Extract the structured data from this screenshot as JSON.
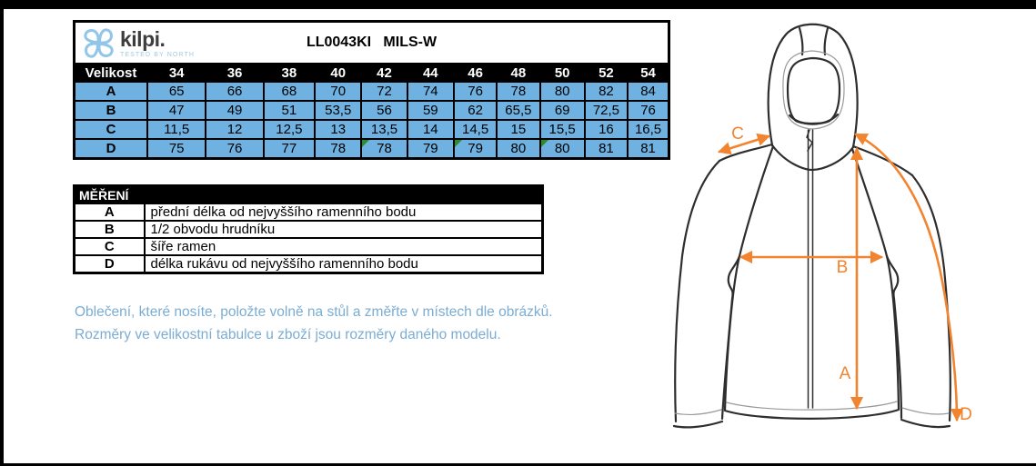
{
  "brand": {
    "name": "kilpi.",
    "slogan": "TESTED BY NORTH"
  },
  "title": "LL0043KI   MILS-W",
  "size_table": {
    "header": [
      "Velikost",
      "34",
      "36",
      "38",
      "40",
      "42",
      "44",
      "46",
      "48",
      "50",
      "52",
      "54"
    ],
    "rows": [
      {
        "label": "A",
        "values": [
          "65",
          "66",
          "68",
          "70",
          "72",
          "74",
          "76",
          "78",
          "80",
          "82",
          "84"
        ],
        "flags": []
      },
      {
        "label": "B",
        "values": [
          "47",
          "49",
          "51",
          "53,5",
          "56",
          "59",
          "62",
          "65,5",
          "69",
          "72,5",
          "76"
        ],
        "flags": []
      },
      {
        "label": "C",
        "values": [
          "11,5",
          "12",
          "12,5",
          "13",
          "13,5",
          "14",
          "14,5",
          "15",
          "15,5",
          "16",
          "16,5"
        ],
        "flags": []
      },
      {
        "label": "D",
        "values": [
          "75",
          "76",
          "77",
          "78",
          "78",
          "79",
          "79",
          "80",
          "80",
          "81",
          "81"
        ],
        "flags": [
          4,
          6,
          8
        ]
      }
    ]
  },
  "measurement_legend": {
    "header": "MĚŘENÍ",
    "rows": [
      {
        "key": "A",
        "description": "přední délka od nejvyššího ramenního bodu"
      },
      {
        "key": "B",
        "description": "1/2 obvodu hrudníku"
      },
      {
        "key": "C",
        "description": "šíře ramen"
      },
      {
        "key": "D",
        "description": "délka rukávu od nejvyššího ramenního bodu"
      }
    ]
  },
  "note": {
    "line1": "Oblečení, které nosíte, položte volně na stůl a změřte v místech dle obrázků.",
    "line2": "Rozměry ve velikostní tabulce u zboží jsou rozměry daného modelu."
  },
  "diagram": {
    "labels": {
      "a": "A",
      "b": "B",
      "c": "C",
      "d": "D"
    }
  },
  "colors": {
    "table_cell_blue": "#6FB2E1",
    "arrow_orange": "#F28430",
    "note_text_blue": "#7BADD3",
    "flag_green": "#2E8B2E",
    "logo_blue": "#92C6E8"
  }
}
